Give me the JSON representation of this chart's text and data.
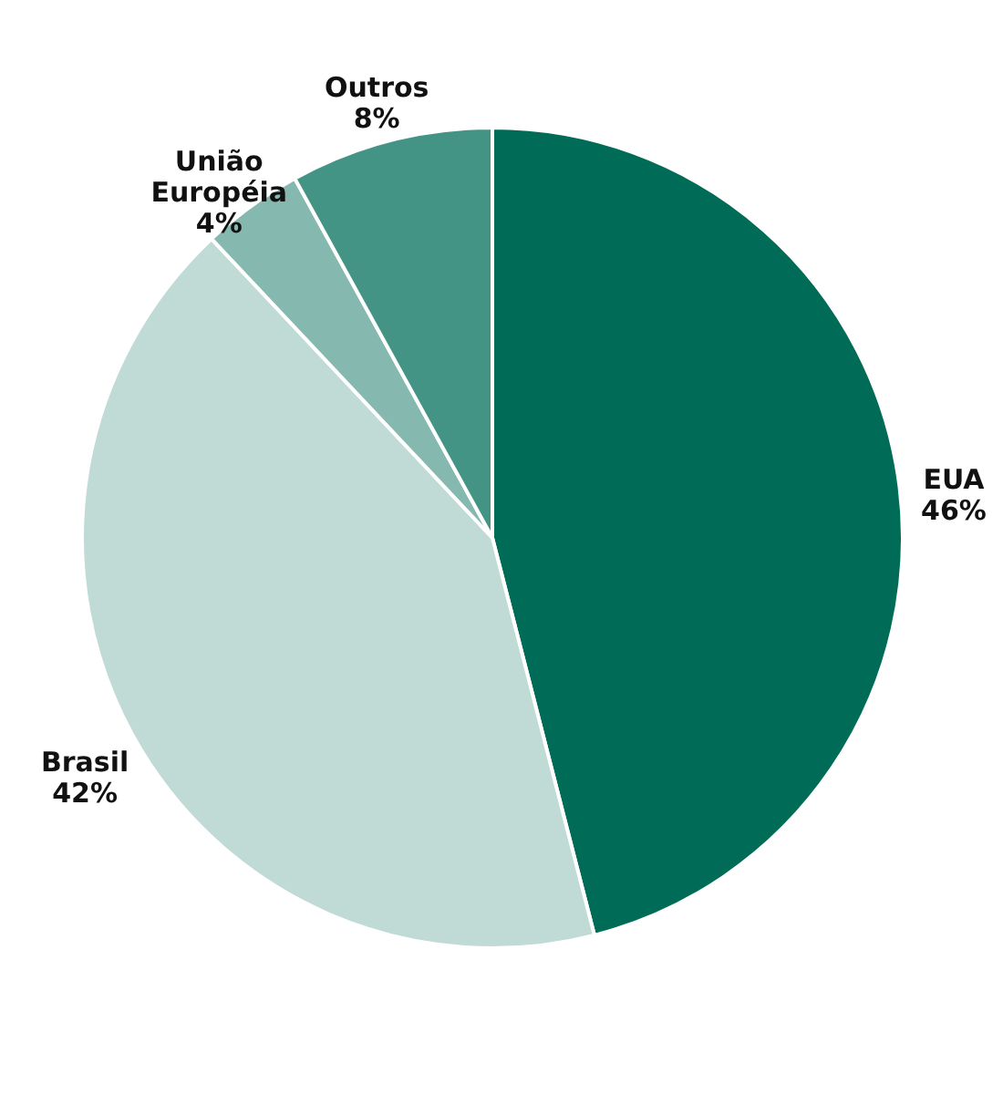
{
  "chart_data": {
    "type": "pie",
    "categories": [
      "EUA",
      "Brasil",
      "União Européia",
      "Outros"
    ],
    "values": [
      46,
      42,
      4,
      8
    ],
    "colors": [
      "#006b56",
      "#c0dbd5",
      "#85b8ae",
      "#449486"
    ],
    "value_labels": [
      "46%",
      "42%",
      "4%",
      "8%"
    ],
    "legend": false
  }
}
